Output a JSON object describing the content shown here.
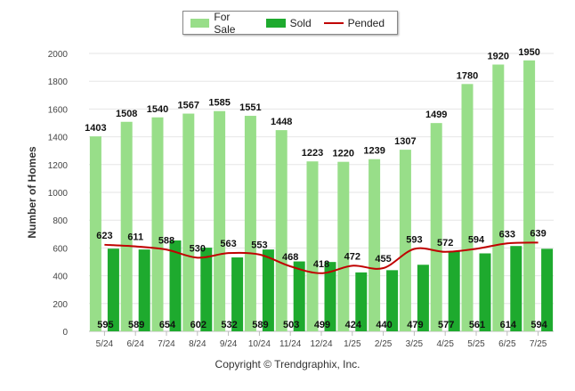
{
  "legend": {
    "for_sale": "For Sale",
    "sold": "Sold",
    "pended": "Pended"
  },
  "copyright": "Copyright © Trendgraphix, Inc.",
  "colors": {
    "for_sale": "#98DE89",
    "sold": "#1EAA2E",
    "pended": "#C00000",
    "grid": "#e6e6e6"
  },
  "chart_data": {
    "type": "bar",
    "ylabel": "Number of Homes",
    "xlabel": "",
    "ylim": [
      0,
      2000
    ],
    "yticks": [
      0,
      200,
      400,
      600,
      800,
      1000,
      1200,
      1400,
      1600,
      1800,
      2000
    ],
    "categories": [
      "5/24",
      "6/24",
      "7/24",
      "8/24",
      "9/24",
      "10/24",
      "11/24",
      "12/24",
      "1/25",
      "2/25",
      "3/25",
      "4/25",
      "5/25",
      "6/25",
      "7/25"
    ],
    "series": [
      {
        "name": "For Sale",
        "type": "bar",
        "values": [
          1403,
          1508,
          1540,
          1567,
          1585,
          1551,
          1448,
          1223,
          1220,
          1239,
          1307,
          1499,
          1780,
          1920,
          1950
        ]
      },
      {
        "name": "Sold",
        "type": "bar",
        "values": [
          595,
          589,
          654,
          602,
          532,
          589,
          503,
          499,
          424,
          440,
          479,
          577,
          561,
          614,
          594
        ]
      },
      {
        "name": "Pended",
        "type": "line",
        "values": [
          623,
          611,
          588,
          530,
          563,
          553,
          468,
          418,
          472,
          455,
          593,
          572,
          594,
          633,
          639
        ]
      }
    ],
    "legend_position": "top-center",
    "grid": true
  }
}
